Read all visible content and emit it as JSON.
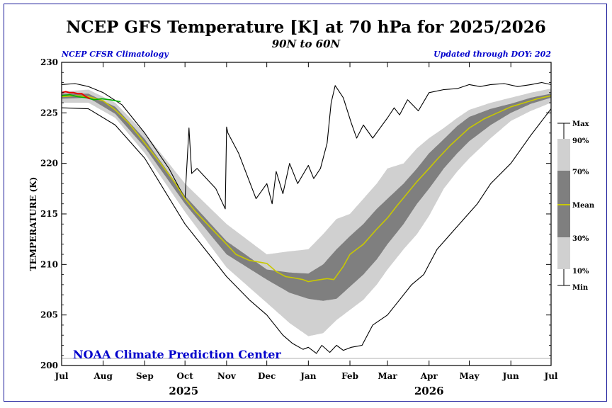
{
  "header": {
    "title": "NCEP GFS Temperature [K] at 70 hPa for 2025/2026",
    "subtitle": "90N to 60N",
    "left_note": "NCEP CFSR Climatology",
    "right_note": "Updated through DOY: 202",
    "credit": "NOAA Climate Prediction Center"
  },
  "colors": {
    "band_outer": "#d0d0d0",
    "band_inner": "#7f7f7f",
    "mean": "#c8c800",
    "extremes": "#000000",
    "accent_blue": "#0000cc",
    "current_year": "#e60000",
    "forecast": "#00b000"
  },
  "chart_data": {
    "type": "line",
    "ylabel": "TEMPERATURE (K)",
    "ylim": [
      200,
      230
    ],
    "yticks": [
      200,
      205,
      210,
      215,
      220,
      225,
      230
    ],
    "xlabels": [
      "Jul",
      "Aug",
      "Sep",
      "Oct",
      "Nov",
      "Dec",
      "Jan",
      "Feb",
      "Mar",
      "Apr",
      "May",
      "Jun",
      "Jul"
    ],
    "x_month_days": [
      0,
      31,
      62,
      92,
      123,
      153,
      184,
      215,
      243,
      274,
      304,
      335,
      365
    ],
    "year_labels": [
      "2025",
      "2026"
    ],
    "legend": [
      "Max",
      "90%",
      "70%",
      "Mean",
      "30%",
      "10%",
      "Min"
    ],
    "reference_line": 200.7,
    "series": [
      {
        "name": "Max",
        "x": [
          0,
          10,
          20,
          31,
          45,
          62,
          80,
          92,
          95,
          97,
          101,
          115,
          122,
          123,
          124,
          132,
          145,
          153,
          157,
          160,
          165,
          170,
          176,
          184,
          188,
          193,
          198,
          201,
          204,
          210,
          216,
          220,
          225,
          232,
          238,
          243,
          248,
          252,
          258,
          266,
          274,
          285,
          295,
          304,
          312,
          320,
          330,
          340,
          350,
          358,
          365
        ],
        "values": [
          227.8,
          227.9,
          227.6,
          227.0,
          225.8,
          223.0,
          219.5,
          216.5,
          223.5,
          219.0,
          219.5,
          217.5,
          215.5,
          223.6,
          223.0,
          221.0,
          216.5,
          218.0,
          216.0,
          219.2,
          217.0,
          220.0,
          218.0,
          219.8,
          218.5,
          219.5,
          222.0,
          226.0,
          227.7,
          226.5,
          224.0,
          222.5,
          223.8,
          222.5,
          223.6,
          224.5,
          225.5,
          224.8,
          226.3,
          225.2,
          227.0,
          227.3,
          227.4,
          227.8,
          227.6,
          227.8,
          227.9,
          227.6,
          227.8,
          228.0,
          227.8
        ]
      },
      {
        "name": "90%",
        "x": [
          0,
          20,
          40,
          62,
          92,
          123,
          153,
          170,
          184,
          195,
          205,
          215,
          225,
          235,
          243,
          255,
          265,
          274,
          285,
          295,
          304,
          320,
          335,
          350,
          365
        ],
        "values": [
          227.1,
          227.3,
          226.0,
          223.0,
          218.0,
          214.0,
          211.0,
          211.3,
          211.5,
          213.0,
          214.5,
          215.0,
          216.5,
          218.0,
          219.5,
          220.0,
          221.5,
          222.5,
          223.5,
          224.5,
          225.3,
          226.0,
          226.5,
          227.0,
          227.4
        ]
      },
      {
        "name": "70%",
        "x": [
          0,
          20,
          40,
          62,
          92,
          123,
          153,
          170,
          184,
          195,
          205,
          215,
          225,
          235,
          243,
          255,
          265,
          274,
          285,
          295,
          304,
          320,
          335,
          350,
          365
        ],
        "values": [
          226.9,
          226.9,
          225.6,
          222.4,
          216.8,
          212.3,
          209.5,
          209.2,
          209.1,
          210.0,
          211.5,
          212.8,
          214.0,
          215.5,
          216.5,
          218.0,
          219.5,
          221.0,
          222.4,
          223.7,
          224.6,
          225.4,
          225.9,
          226.5,
          226.9
        ]
      },
      {
        "name": "Mean",
        "x": [
          0,
          10,
          20,
          31,
          40,
          50,
          62,
          75,
          85,
          92,
          100,
          110,
          123,
          130,
          140,
          153,
          160,
          167,
          172,
          180,
          184,
          188,
          193,
          198,
          203,
          210,
          215,
          225,
          235,
          243,
          250,
          255,
          260,
          265,
          274,
          280,
          290,
          304,
          315,
          325,
          335,
          345,
          355,
          365
        ],
        "values": [
          226.6,
          226.7,
          226.6,
          226.2,
          225.3,
          224.0,
          222.0,
          219.8,
          218.0,
          216.5,
          215.2,
          213.8,
          212.0,
          211.0,
          210.4,
          210.1,
          209.3,
          208.8,
          208.7,
          208.5,
          208.3,
          208.4,
          208.5,
          208.6,
          208.5,
          209.8,
          211.0,
          212.0,
          213.5,
          214.6,
          215.8,
          216.6,
          217.4,
          218.2,
          219.5,
          220.4,
          221.8,
          223.5,
          224.4,
          225.0,
          225.6,
          226.0,
          226.4,
          226.7
        ]
      },
      {
        "name": "30%",
        "x": [
          0,
          20,
          40,
          62,
          92,
          123,
          153,
          170,
          184,
          195,
          205,
          215,
          225,
          235,
          243,
          255,
          265,
          274,
          285,
          295,
          304,
          320,
          335,
          350,
          365
        ],
        "values": [
          226.4,
          226.5,
          224.9,
          221.6,
          216.0,
          211.0,
          208.5,
          207.2,
          206.6,
          206.4,
          206.6,
          207.8,
          209.0,
          210.5,
          212.0,
          214.0,
          216.0,
          217.5,
          219.5,
          221.0,
          222.2,
          223.8,
          225.0,
          225.9,
          226.5
        ]
      },
      {
        "name": "10%",
        "x": [
          0,
          20,
          40,
          62,
          92,
          123,
          153,
          170,
          184,
          195,
          205,
          215,
          225,
          235,
          243,
          255,
          265,
          274,
          285,
          295,
          304,
          320,
          335,
          350,
          365
        ],
        "values": [
          226.0,
          226.0,
          224.5,
          221.0,
          215.2,
          209.7,
          206.2,
          204.2,
          202.9,
          203.2,
          204.5,
          205.5,
          206.5,
          208.0,
          209.5,
          211.5,
          213.0,
          214.8,
          217.5,
          219.2,
          220.5,
          222.5,
          224.2,
          225.2,
          226.0
        ]
      },
      {
        "name": "Min",
        "x": [
          0,
          20,
          40,
          62,
          92,
          110,
          123,
          140,
          153,
          165,
          172,
          180,
          184,
          190,
          194,
          200,
          205,
          210,
          216,
          224,
          232,
          243,
          252,
          261,
          270,
          274,
          280,
          290,
          300,
          310,
          320,
          335,
          350,
          365
        ],
        "values": [
          225.5,
          225.4,
          223.8,
          220.5,
          214.0,
          211.0,
          208.8,
          206.5,
          205.0,
          203.0,
          202.2,
          201.6,
          201.8,
          201.2,
          202.0,
          201.3,
          202.0,
          201.5,
          201.8,
          202.0,
          204.0,
          205.0,
          206.5,
          208.0,
          209.0,
          210.0,
          211.5,
          213.0,
          214.5,
          216.0,
          218.0,
          220.0,
          222.8,
          225.4
        ]
      },
      {
        "name": "2025",
        "x": [
          0,
          3,
          6,
          9,
          12,
          15,
          18,
          21
        ],
        "values": [
          227.0,
          227.1,
          227.0,
          227.0,
          226.9,
          226.9,
          226.6,
          226.4
        ]
      },
      {
        "name": "Forecast",
        "x": [
          0,
          6,
          12,
          18,
          24,
          30,
          36,
          40,
          44
        ],
        "values": [
          226.7,
          226.8,
          226.6,
          226.5,
          226.3,
          226.4,
          226.3,
          226.2,
          226.1
        ]
      }
    ]
  }
}
